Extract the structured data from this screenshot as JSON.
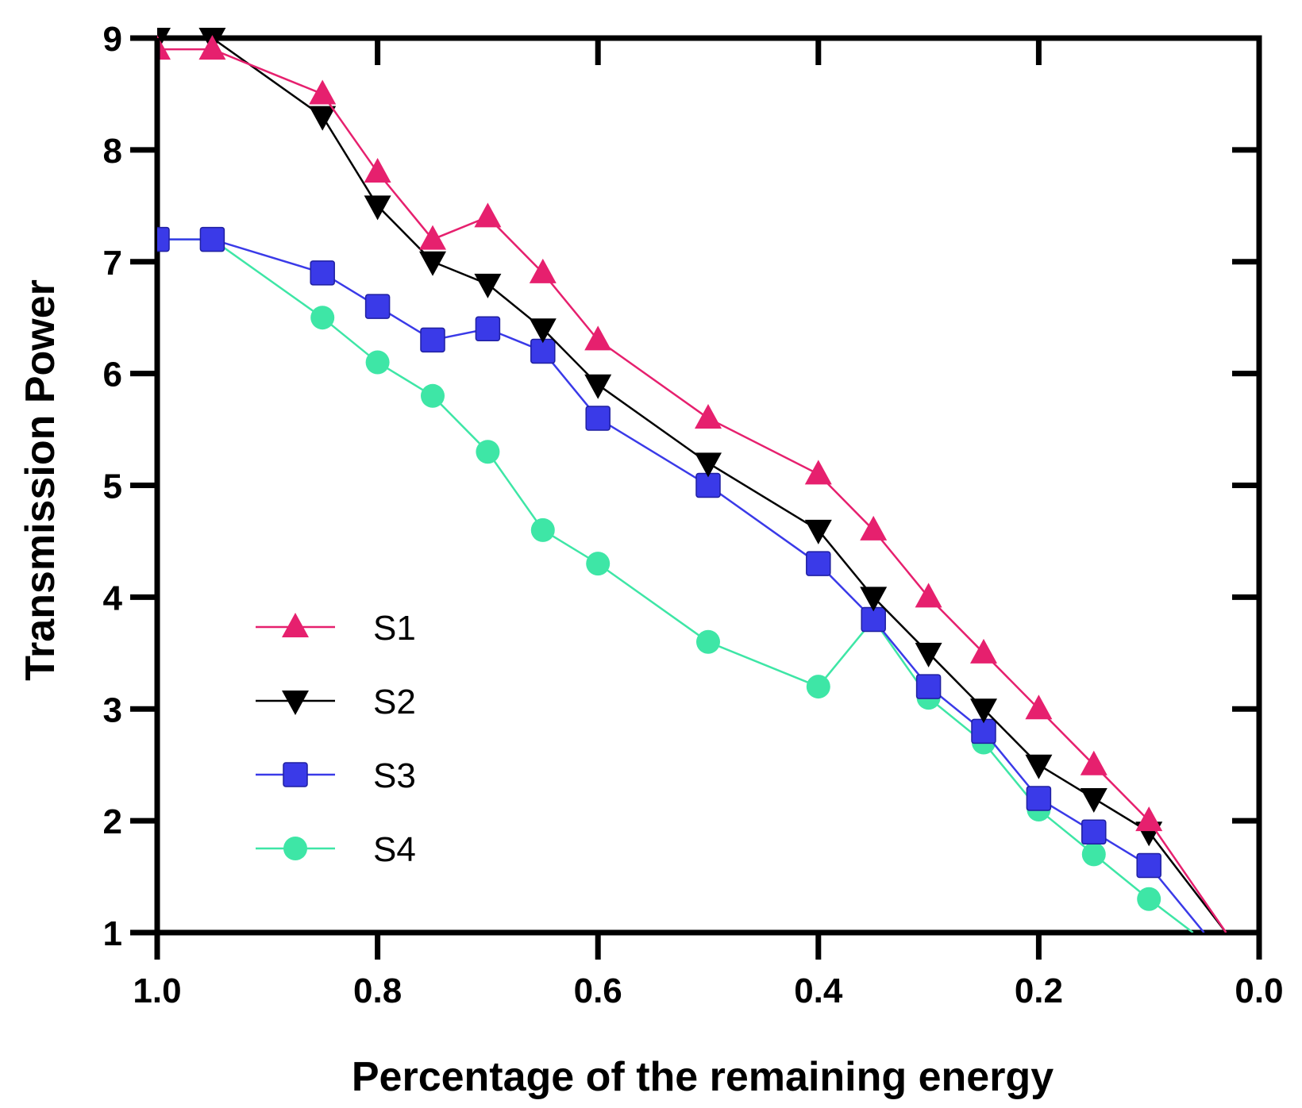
{
  "chart_data": {
    "type": "line",
    "title": "",
    "xlabel": "Percentage of the remaining energy",
    "ylabel": "Transmission Power",
    "xlim": [
      1.0,
      0.0
    ],
    "ylim": [
      1,
      9
    ],
    "x_ticks": [
      "1.0",
      "0.8",
      "0.6",
      "0.4",
      "0.2",
      "0.0"
    ],
    "x_tick_values": [
      1.0,
      0.8,
      0.6,
      0.4,
      0.2,
      0.0
    ],
    "y_ticks": [
      "1",
      "2",
      "3",
      "4",
      "5",
      "6",
      "7",
      "8",
      "9"
    ],
    "y_tick_values": [
      1,
      2,
      3,
      4,
      5,
      6,
      7,
      8,
      9
    ],
    "grid": false,
    "legend_position": "lower-left",
    "series": [
      {
        "name": "S1",
        "color": "#e6206e",
        "marker": "triangle-up",
        "x": [
          1.0,
          0.95,
          0.85,
          0.8,
          0.75,
          0.7,
          0.65,
          0.6,
          0.5,
          0.4,
          0.35,
          0.3,
          0.25,
          0.2,
          0.15,
          0.1,
          0.03
        ],
        "y": [
          8.9,
          8.9,
          8.5,
          7.8,
          7.2,
          7.4,
          6.9,
          6.3,
          5.6,
          5.1,
          4.6,
          4.0,
          3.5,
          3.0,
          2.5,
          2.0,
          1.0
        ]
      },
      {
        "name": "S2",
        "color": "#000000",
        "marker": "triangle-down",
        "x": [
          1.0,
          0.95,
          0.85,
          0.8,
          0.75,
          0.7,
          0.65,
          0.6,
          0.5,
          0.4,
          0.35,
          0.3,
          0.25,
          0.2,
          0.15,
          0.1,
          0.03
        ],
        "y": [
          9.0,
          9.0,
          8.3,
          7.5,
          7.0,
          6.8,
          6.4,
          5.9,
          5.2,
          4.6,
          4.0,
          3.5,
          3.0,
          2.5,
          2.2,
          1.9,
          1.0
        ]
      },
      {
        "name": "S3",
        "color": "#3a3ae8",
        "marker": "square",
        "x": [
          1.0,
          0.95,
          0.85,
          0.8,
          0.75,
          0.7,
          0.65,
          0.6,
          0.5,
          0.4,
          0.35,
          0.3,
          0.25,
          0.2,
          0.15,
          0.1,
          0.05
        ],
        "y": [
          7.2,
          7.2,
          6.9,
          6.6,
          6.3,
          6.4,
          6.2,
          5.6,
          5.0,
          4.3,
          3.8,
          3.2,
          2.8,
          2.2,
          1.9,
          1.6,
          1.0
        ]
      },
      {
        "name": "S4",
        "color": "#3ee6a6",
        "marker": "circle",
        "x": [
          1.0,
          0.95,
          0.85,
          0.8,
          0.75,
          0.7,
          0.65,
          0.6,
          0.5,
          0.4,
          0.35,
          0.3,
          0.25,
          0.2,
          0.15,
          0.1,
          0.06
        ],
        "y": [
          7.2,
          7.2,
          6.5,
          6.1,
          5.8,
          5.3,
          4.6,
          4.3,
          3.6,
          3.2,
          3.8,
          3.1,
          2.7,
          2.1,
          1.7,
          1.3,
          1.0
        ]
      }
    ]
  }
}
